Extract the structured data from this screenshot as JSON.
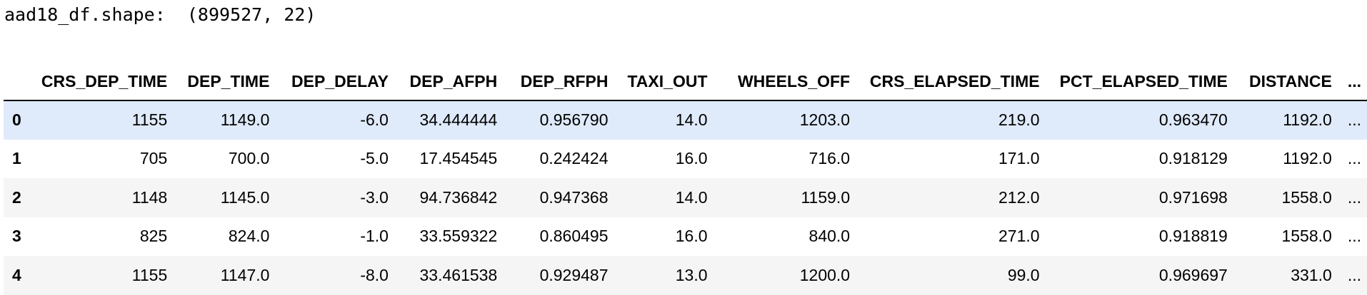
{
  "output": {
    "shape_text": "aad18_df.shape:  (899527, 22)"
  },
  "table": {
    "columns": [
      "CRS_DEP_TIME",
      "DEP_TIME",
      "DEP_DELAY",
      "DEP_AFPH",
      "DEP_RFPH",
      "TAXI_OUT",
      "WHEELS_OFF",
      "CRS_ELAPSED_TIME",
      "PCT_ELAPSED_TIME",
      "DISTANCE"
    ],
    "ellipsis": "...",
    "highlighted_row": 0,
    "rows": [
      {
        "index": "0",
        "cells": [
          "1155",
          "1149.0",
          "-6.0",
          "34.444444",
          "0.956790",
          "14.0",
          "1203.0",
          "219.0",
          "0.963470",
          "1192.0"
        ]
      },
      {
        "index": "1",
        "cells": [
          "705",
          "700.0",
          "-5.0",
          "17.454545",
          "0.242424",
          "16.0",
          "716.0",
          "171.0",
          "0.918129",
          "1192.0"
        ]
      },
      {
        "index": "2",
        "cells": [
          "1148",
          "1145.0",
          "-3.0",
          "94.736842",
          "0.947368",
          "14.0",
          "1159.0",
          "212.0",
          "0.971698",
          "1558.0"
        ]
      },
      {
        "index": "3",
        "cells": [
          "825",
          "824.0",
          "-1.0",
          "33.559322",
          "0.860495",
          "16.0",
          "840.0",
          "271.0",
          "0.918819",
          "1558.0"
        ]
      },
      {
        "index": "4",
        "cells": [
          "1155",
          "1147.0",
          "-8.0",
          "33.461538",
          "0.929487",
          "13.0",
          "1200.0",
          "99.0",
          "0.969697",
          "331.0"
        ]
      }
    ]
  }
}
